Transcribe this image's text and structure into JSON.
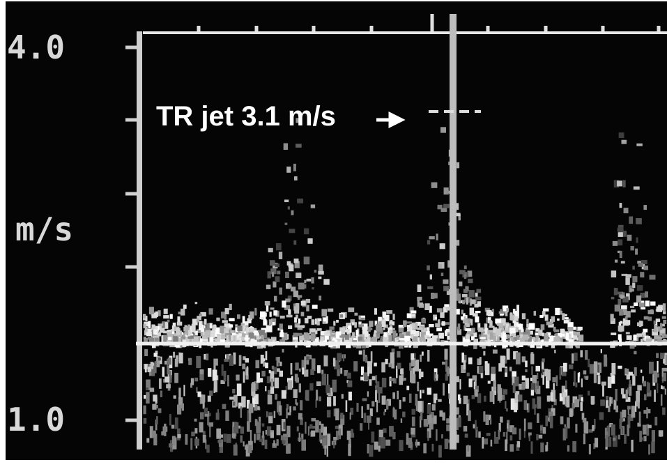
{
  "scale": {
    "top_label": "4.0",
    "unit": "m/s",
    "bottom_label": "1.0"
  },
  "annotation": "TR jet 3.1 m/s"
}
